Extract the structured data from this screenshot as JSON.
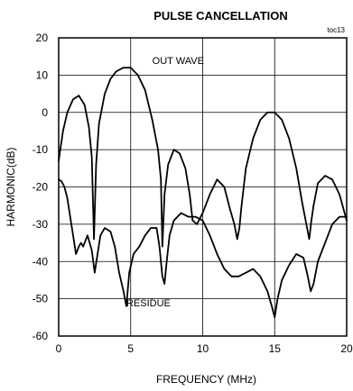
{
  "chart_data": {
    "type": "line",
    "title": "PULSE CANCELLATION",
    "tag": "toc13",
    "xlabel": "FREQUENCY (MHz)",
    "ylabel": "HARMONIC(dB)",
    "xlim": [
      0,
      20
    ],
    "ylim": [
      -60,
      20
    ],
    "x_ticks": [
      "0",
      "5",
      "10",
      "15",
      "20"
    ],
    "y_ticks": [
      "20",
      "10",
      "0",
      "-10",
      "-20",
      "-30",
      "-40",
      "-50",
      "-60"
    ],
    "grid": true,
    "annotations": [
      {
        "text": "OUT WAVE",
        "x": 6.5,
        "y": 13
      },
      {
        "text": "RESIDUE",
        "x": 4.7,
        "y": -52
      }
    ],
    "series": [
      {
        "name": "OUT WAVE",
        "x": [
          0,
          0.3,
          0.6,
          1.0,
          1.4,
          1.8,
          2.1,
          2.3,
          2.45,
          2.6,
          2.8,
          3.2,
          3.6,
          4.0,
          4.5,
          5.0,
          5.5,
          6.0,
          6.5,
          6.9,
          7.1,
          7.2,
          7.35,
          7.6,
          8.0,
          8.4,
          8.8,
          9.1,
          9.3,
          9.6,
          10.0,
          10.5,
          11.0,
          11.5,
          11.9,
          12.2,
          12.4,
          12.55,
          12.7,
          13.0,
          13.5,
          14.0,
          14.5,
          15.0,
          15.5,
          16.0,
          16.5,
          16.9,
          17.2,
          17.4,
          17.55,
          17.7,
          18.0,
          18.5,
          19.0,
          19.5,
          20.0
        ],
        "values": [
          -13,
          -5,
          0,
          3.5,
          4.5,
          2,
          -4,
          -12,
          -34,
          -14,
          -3,
          5,
          9,
          11,
          12,
          12,
          10,
          6,
          -2,
          -10,
          -18,
          -36,
          -22,
          -14,
          -10,
          -11,
          -15,
          -22,
          -29,
          -30,
          -27,
          -22,
          -18,
          -20,
          -26,
          -30,
          -34,
          -31,
          -25,
          -15,
          -7,
          -2,
          0,
          0,
          -2,
          -7,
          -15,
          -24,
          -30,
          -34,
          -29,
          -25,
          -19,
          -17,
          -18,
          -22,
          -29
        ]
      },
      {
        "name": "RESIDUE",
        "x": [
          0,
          0.2,
          0.4,
          0.6,
          0.8,
          1.0,
          1.2,
          1.4,
          1.55,
          1.7,
          2.0,
          2.3,
          2.5,
          2.7,
          2.9,
          3.2,
          3.6,
          3.9,
          4.2,
          4.5,
          4.7,
          4.9,
          5.2,
          5.6,
          6.0,
          6.4,
          6.8,
          7.0,
          7.2,
          7.35,
          7.5,
          7.7,
          8.0,
          8.5,
          9.0,
          9.5,
          10.0,
          10.5,
          11.0,
          11.5,
          12.0,
          12.5,
          13.0,
          13.5,
          14.0,
          14.5,
          14.8,
          15.0,
          15.2,
          15.5,
          16.0,
          16.5,
          17.0,
          17.3,
          17.5,
          17.7,
          18.0,
          18.5,
          19.0,
          19.5,
          20.0
        ],
        "values": [
          -18,
          -18.5,
          -20,
          -23,
          -28,
          -33,
          -38,
          -36,
          -35,
          -36,
          -33,
          -37,
          -43,
          -38,
          -33,
          -31,
          -32,
          -36,
          -43,
          -48,
          -52,
          -43,
          -38,
          -36,
          -33,
          -31,
          -31,
          -36,
          -44,
          -46,
          -40,
          -33,
          -29,
          -27,
          -28,
          -28,
          -29,
          -33,
          -38,
          -42,
          -44,
          -44,
          -43,
          -42,
          -44,
          -48,
          -52,
          -55,
          -50,
          -45,
          -41,
          -38,
          -39,
          -44,
          -48,
          -46,
          -40,
          -35,
          -30,
          -28,
          -28
        ]
      }
    ]
  }
}
